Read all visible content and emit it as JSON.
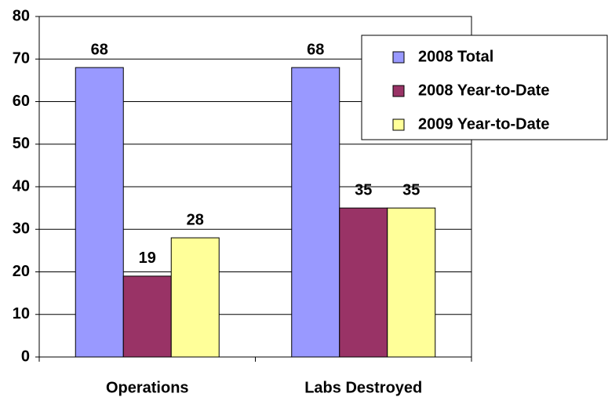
{
  "chart_data": {
    "type": "bar",
    "categories": [
      "Operations",
      "Labs Destroyed"
    ],
    "series": [
      {
        "name": "2008 Total",
        "color": "#9999ff",
        "values": [
          68,
          68
        ]
      },
      {
        "name": "2008 Year-to-Date",
        "color": "#993366",
        "values": [
          19,
          35
        ]
      },
      {
        "name": "2009 Year-to-Date",
        "color": "#ffff99",
        "values": [
          28,
          35
        ]
      }
    ],
    "ylim": [
      0,
      80
    ],
    "yticks": [
      0,
      10,
      20,
      30,
      40,
      50,
      60,
      70,
      80
    ],
    "grid": true,
    "legend": "upper right",
    "data_labels": true
  }
}
